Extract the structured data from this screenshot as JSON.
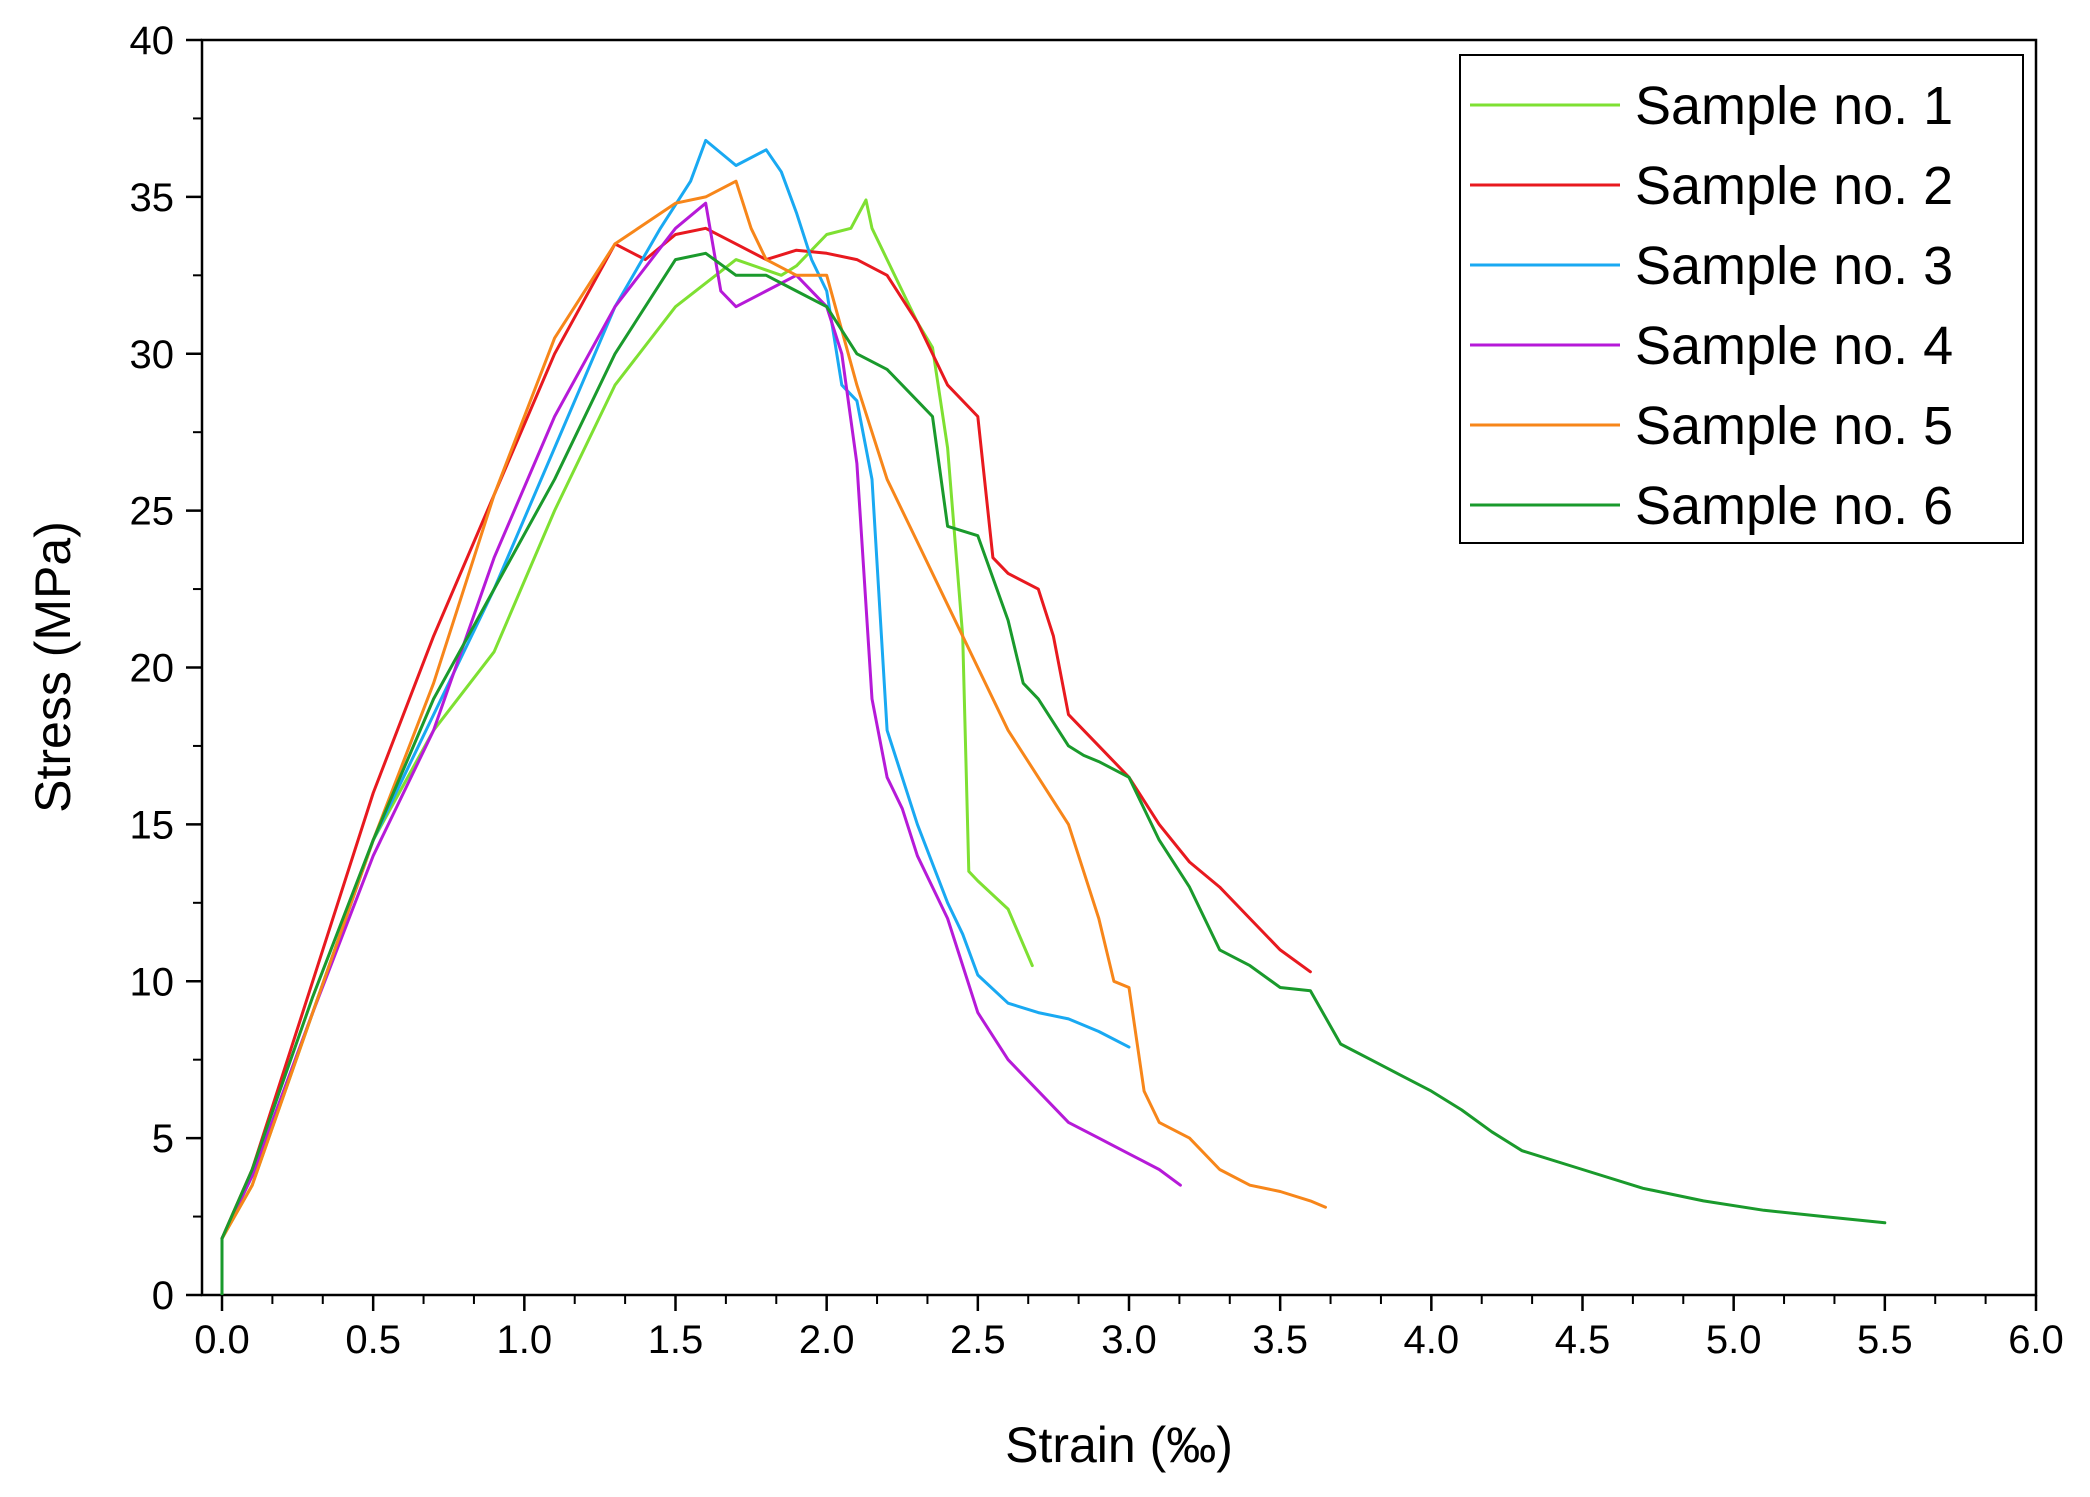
{
  "chart_data": {
    "type": "line",
    "title": "",
    "xlabel": "Strain (‰)",
    "ylabel": "Stress (MPa)",
    "xlim": [
      0,
      6
    ],
    "ylim": [
      0,
      40
    ],
    "x_ticks": [
      0.0,
      0.5,
      1.0,
      1.5,
      2.0,
      2.5,
      3.0,
      3.5,
      4.0,
      4.5,
      5.0,
      5.5,
      6.0
    ],
    "x_tick_labels": [
      "0.0",
      "0.5",
      "1.0",
      "1.5",
      "2.0",
      "2.5",
      "3.0",
      "3.5",
      "4.0",
      "4.5",
      "5.0",
      "5.5",
      "6.0"
    ],
    "y_ticks": [
      0,
      5,
      10,
      15,
      20,
      25,
      30,
      35,
      40
    ],
    "y_tick_labels": [
      "0",
      "5",
      "10",
      "15",
      "20",
      "25",
      "30",
      "35",
      "40"
    ],
    "grid": false,
    "legend_position": "top-right",
    "series": [
      {
        "name": "Sample no. 1",
        "color": "#7ee032",
        "x": [
          0.0,
          0.1,
          0.3,
          0.5,
          0.7,
          0.9,
          1.1,
          1.3,
          1.5,
          1.7,
          1.85,
          1.9,
          2.0,
          2.08,
          2.13,
          2.15,
          2.2,
          2.3,
          2.35,
          2.4,
          2.45,
          2.47,
          2.5,
          2.6,
          2.68
        ],
        "y": [
          1.8,
          3.5,
          9.0,
          14.5,
          18.0,
          20.5,
          25.0,
          29.0,
          31.5,
          33.0,
          32.5,
          32.8,
          33.8,
          34.0,
          34.9,
          34.0,
          33.0,
          31.0,
          30.2,
          27.0,
          21.0,
          13.5,
          13.2,
          12.3,
          10.5
        ]
      },
      {
        "name": "Sample no. 2",
        "color": "#e8191f",
        "x": [
          0.0,
          0.1,
          0.3,
          0.5,
          0.7,
          0.9,
          1.1,
          1.3,
          1.4,
          1.5,
          1.6,
          1.7,
          1.8,
          1.9,
          2.0,
          2.1,
          2.2,
          2.3,
          2.4,
          2.5,
          2.55,
          2.6,
          2.7,
          2.75,
          2.8,
          2.9,
          3.0,
          3.1,
          3.2,
          3.3,
          3.4,
          3.5,
          3.6
        ],
        "y": [
          1.8,
          4.0,
          10.0,
          16.0,
          21.0,
          25.5,
          30.0,
          33.5,
          33.0,
          33.8,
          34.0,
          33.5,
          33.0,
          33.3,
          33.2,
          33.0,
          32.5,
          31.0,
          29.0,
          28.0,
          23.5,
          23.0,
          22.5,
          21.0,
          18.5,
          17.5,
          16.5,
          15.0,
          13.8,
          13.0,
          12.0,
          11.0,
          10.3
        ]
      },
      {
        "name": "Sample no. 3",
        "color": "#19a9f2",
        "x": [
          0.0,
          0.1,
          0.3,
          0.5,
          0.7,
          0.9,
          1.1,
          1.3,
          1.45,
          1.55,
          1.6,
          1.7,
          1.8,
          1.85,
          1.9,
          1.95,
          2.0,
          2.05,
          2.1,
          2.15,
          2.2,
          2.3,
          2.4,
          2.45,
          2.5,
          2.6,
          2.7,
          2.8,
          2.9,
          3.0
        ],
        "y": [
          1.8,
          3.8,
          9.0,
          14.5,
          18.5,
          22.5,
          27.0,
          31.5,
          34.0,
          35.5,
          36.8,
          36.0,
          36.5,
          35.8,
          34.5,
          33.0,
          32.0,
          29.0,
          28.5,
          26.0,
          18.0,
          15.0,
          12.5,
          11.5,
          10.2,
          9.3,
          9.0,
          8.8,
          8.4,
          7.9
        ]
      },
      {
        "name": "Sample no. 4",
        "color": "#b61ad8",
        "x": [
          0.0,
          0.1,
          0.3,
          0.5,
          0.7,
          0.9,
          1.1,
          1.3,
          1.5,
          1.6,
          1.65,
          1.7,
          1.8,
          1.9,
          2.0,
          2.05,
          2.1,
          2.15,
          2.2,
          2.25,
          2.3,
          2.4,
          2.5,
          2.6,
          2.7,
          2.8,
          2.9,
          3.0,
          3.1,
          3.17
        ],
        "y": [
          1.8,
          3.8,
          9.0,
          14.0,
          18.0,
          23.5,
          28.0,
          31.5,
          34.0,
          34.8,
          32.0,
          31.5,
          32.0,
          32.5,
          31.5,
          30.0,
          26.5,
          19.0,
          16.5,
          15.5,
          14.0,
          12.0,
          9.0,
          7.5,
          6.5,
          5.5,
          5.0,
          4.5,
          4.0,
          3.5
        ]
      },
      {
        "name": "Sample no. 5",
        "color": "#f7861a",
        "x": [
          0.0,
          0.1,
          0.3,
          0.5,
          0.7,
          0.9,
          1.1,
          1.3,
          1.5,
          1.6,
          1.7,
          1.75,
          1.8,
          1.9,
          2.0,
          2.1,
          2.2,
          2.3,
          2.4,
          2.5,
          2.6,
          2.7,
          2.8,
          2.9,
          2.95,
          3.0,
          3.05,
          3.1,
          3.2,
          3.3,
          3.4,
          3.5,
          3.6,
          3.65
        ],
        "y": [
          1.8,
          3.5,
          9.0,
          14.5,
          19.5,
          25.5,
          30.5,
          33.5,
          34.8,
          35.0,
          35.5,
          34.0,
          33.0,
          32.5,
          32.5,
          29.0,
          26.0,
          24.0,
          22.0,
          20.0,
          18.0,
          16.5,
          15.0,
          12.0,
          10.0,
          9.8,
          6.5,
          5.5,
          5.0,
          4.0,
          3.5,
          3.3,
          3.0,
          2.8
        ]
      },
      {
        "name": "Sample no. 6",
        "color": "#1a9a2c",
        "x": [
          0.0,
          0.1,
          0.3,
          0.5,
          0.7,
          0.9,
          1.1,
          1.3,
          1.5,
          1.6,
          1.7,
          1.8,
          1.9,
          2.0,
          2.1,
          2.2,
          2.3,
          2.35,
          2.4,
          2.5,
          2.6,
          2.65,
          2.7,
          2.8,
          2.85,
          2.9,
          3.0,
          3.1,
          3.2,
          3.3,
          3.4,
          3.5,
          3.6,
          3.7,
          3.8,
          3.9,
          4.0,
          4.1,
          4.2,
          4.3,
          4.5,
          4.7,
          4.9,
          5.1,
          5.3,
          5.5
        ],
        "y": [
          1.8,
          4.0,
          9.5,
          14.5,
          19.0,
          22.5,
          26.0,
          30.0,
          33.0,
          33.2,
          32.5,
          32.5,
          32.0,
          31.5,
          30.0,
          29.5,
          28.5,
          28.0,
          24.5,
          24.2,
          21.5,
          19.5,
          19.0,
          17.5,
          17.2,
          17.0,
          16.5,
          14.5,
          13.0,
          11.0,
          10.5,
          9.8,
          9.7,
          8.0,
          7.5,
          7.0,
          6.5,
          5.9,
          5.2,
          4.6,
          4.0,
          3.4,
          3.0,
          2.7,
          2.5,
          2.3
        ]
      }
    ]
  }
}
